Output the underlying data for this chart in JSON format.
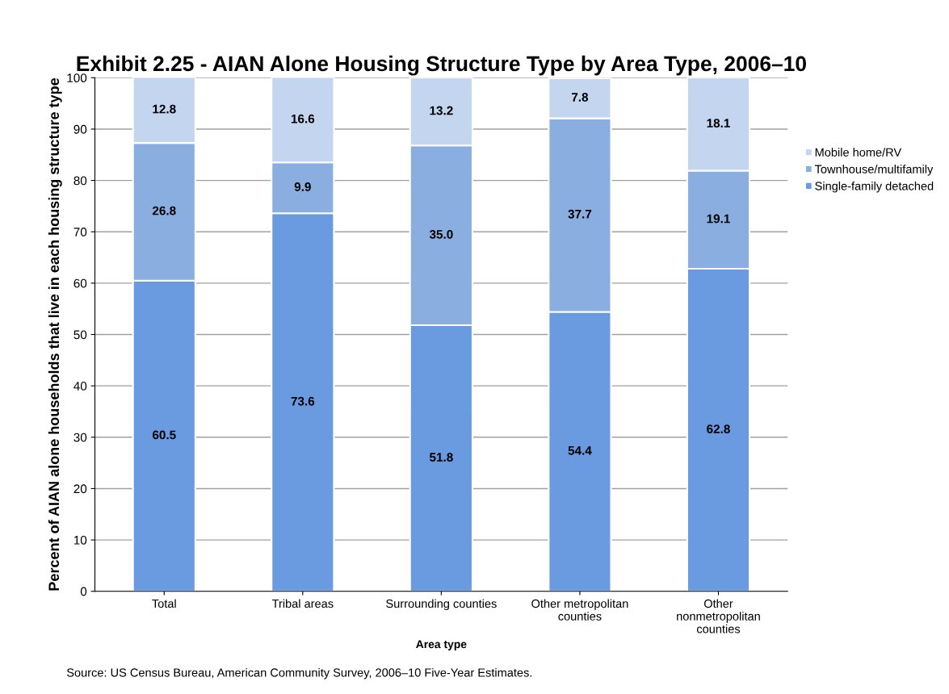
{
  "chart_data": {
    "type": "bar",
    "stacked": true,
    "title": "Exhibit 2.25 - AIAN Alone Housing Structure Type by Area Type, 2006–10",
    "xlabel": "Area type",
    "ylabel": "Percent of AIAN alone households that live in each housing structure type",
    "categories": [
      "Total",
      "Tribal areas",
      "Surrounding counties",
      "Other metropolitan\ncounties",
      "Other\nnonmetropolitan\ncounties"
    ],
    "series": [
      {
        "name": "Single-family detached",
        "color": "#6a9be0",
        "values": [
          60.5,
          73.6,
          51.8,
          54.4,
          62.8
        ],
        "value_labels": [
          "60.5",
          "73.6",
          "51.8",
          "54.4",
          "62.8"
        ]
      },
      {
        "name": "Townhouse/multifamily",
        "color": "#8aaee0",
        "values": [
          26.8,
          9.9,
          35.0,
          37.7,
          19.1
        ],
        "value_labels": [
          "26.8",
          "9.9",
          "35.0",
          "37.7",
          "19.1"
        ]
      },
      {
        "name": "Mobile home/RV",
        "color": "#c3d5ef",
        "values": [
          12.8,
          16.6,
          13.2,
          7.8,
          18.1
        ],
        "value_labels": [
          "12.8",
          "16.6",
          "13.2",
          "7.8",
          "18.1"
        ]
      }
    ],
    "ylim": [
      0,
      100
    ],
    "yticks": [
      0,
      10,
      20,
      30,
      40,
      50,
      60,
      70,
      80,
      90,
      100
    ],
    "grid": "y",
    "legend": "right",
    "annotations": [
      "Source: US Census Bureau, American Community Survey, 2006–10 Five-Year Estimates."
    ]
  }
}
